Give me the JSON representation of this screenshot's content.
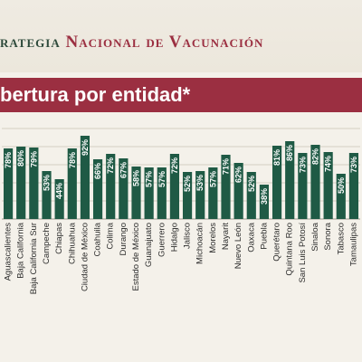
{
  "header": {
    "title_lead": "rategia ",
    "title_accent": "Nacional de Vacunación"
  },
  "colors": {
    "bar": "#1f5a45",
    "accent": "#9b2f41",
    "grid": "#c9c3b6",
    "label": "#2b2b2b",
    "value_label": "#ffffff"
  },
  "chart_data": {
    "type": "bar",
    "title": "bertura por entidad*",
    "categories": [
      "Aguascalientes",
      "Baja California",
      "Baja California Sur",
      "Campeche",
      "Chiapas",
      "Chihuahua",
      "Ciudad de México",
      "Coahuila",
      "Colima",
      "Durango",
      "Estado de México",
      "Guanajuato",
      "Guerrero",
      "Hidalgo",
      "Jalisco",
      "Michoacán",
      "Morelos",
      "Nayarit",
      "Nuevo León",
      "Oaxaca",
      "Puebla",
      "Querétaro",
      "Quintana Roo",
      "San Luis Potosí",
      "Sinaloa",
      "Sonora",
      "Tabasco",
      "Tamaulipas"
    ],
    "values": [
      78,
      80,
      79,
      53,
      44,
      78,
      92,
      66,
      72,
      67,
      58,
      57,
      57,
      72,
      52,
      53,
      57,
      71,
      62,
      52,
      38,
      81,
      86,
      73,
      82,
      74,
      50,
      73
    ],
    "value_labels": [
      "78%",
      "80%",
      "79%",
      "53%",
      "44%",
      "78%",
      "92%",
      "66%",
      "72%",
      "67%",
      "58%",
      "57%",
      "57%",
      "72%",
      "52%",
      "53%",
      "57%",
      "71%",
      "62%",
      "52%",
      "38%",
      "81%",
      "86%",
      "73%",
      "82%",
      "74%",
      "50%",
      "73%"
    ],
    "ylim": [
      0,
      100
    ],
    "grid": true,
    "xlabel": "",
    "ylabel": ""
  }
}
